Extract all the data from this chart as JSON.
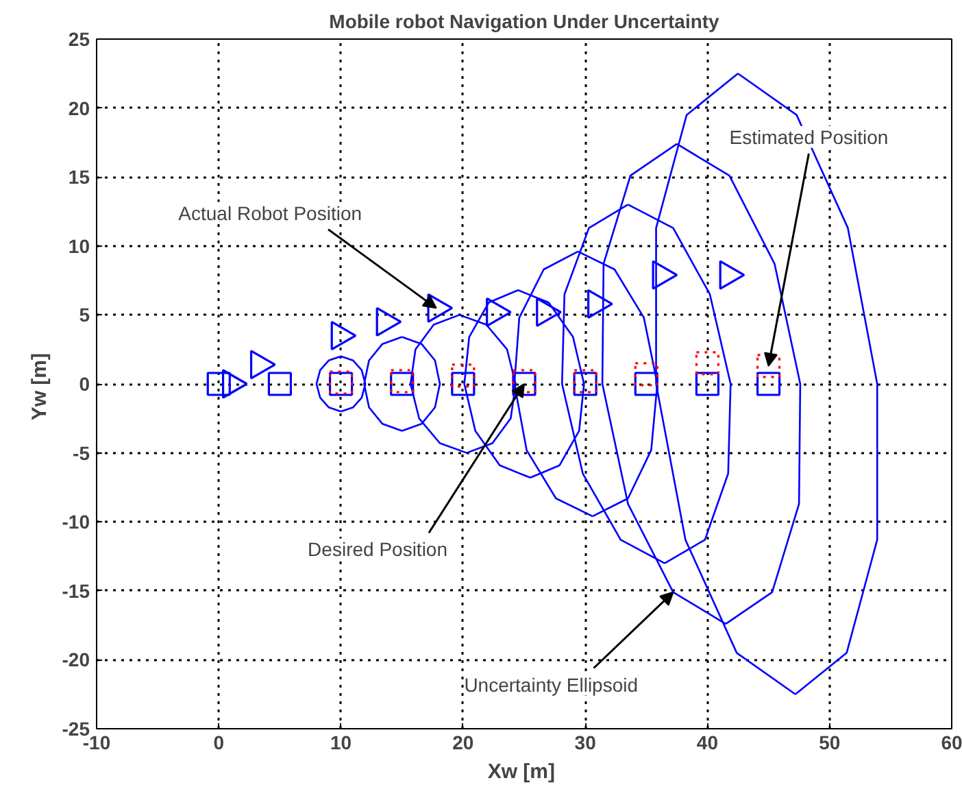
{
  "chart_data": {
    "type": "line",
    "title": "Mobile robot Navigation Under Uncertainty",
    "xlabel": "Xw  [m]",
    "ylabel": "Yw  [m]",
    "xlim": [
      -10,
      60
    ],
    "ylim": [
      -25,
      25
    ],
    "xticks": [
      -10,
      0,
      10,
      20,
      30,
      40,
      50,
      60
    ],
    "yticks": [
      -25,
      -20,
      -15,
      -10,
      -5,
      0,
      5,
      10,
      15,
      20,
      25
    ],
    "grid": true,
    "series": [
      {
        "color": "#0000ff",
        "x": [
          10,
          9,
          8.3,
          8,
          8.3,
          9,
          10
        ],
        "values": [
          2,
          1.7,
          1,
          0,
          -1,
          -1.7,
          -2
        ]
      },
      {
        "color": "#0000ff",
        "x": [
          10,
          11,
          11.7,
          12,
          11.7,
          11,
          10
        ],
        "values": [
          -2,
          -1.7,
          -1,
          0,
          1,
          1.7,
          2
        ]
      },
      {
        "color": "#0000ff",
        "x": [
          15,
          13.4,
          12.3,
          11.9,
          12.3,
          13.4,
          15
        ],
        "values": [
          3.4,
          2.9,
          1.7,
          0,
          -1.7,
          -2.9,
          -3.4
        ]
      },
      {
        "color": "#0000ff",
        "x": [
          15,
          16.6,
          17.7,
          18.1,
          17.7,
          16.6,
          15
        ],
        "values": [
          -3.4,
          -2.9,
          -1.7,
          0,
          1.7,
          2.9,
          3.4
        ]
      },
      {
        "color": "#0000ff",
        "x": [
          19.7,
          17.6,
          16.1,
          15.7,
          16.4,
          18.1,
          20.3
        ],
        "values": [
          5,
          4.3,
          2.5,
          0,
          -2.5,
          -4.3,
          -5
        ]
      },
      {
        "color": "#0000ff",
        "x": [
          20.3,
          22.4,
          23.9,
          24.3,
          23.6,
          21.9,
          19.7
        ],
        "values": [
          -5,
          -4.3,
          -2.5,
          0,
          2.5,
          4.3,
          5
        ]
      },
      {
        "color": "#0000ff",
        "x": [
          24.5,
          22.1,
          20.5,
          20.1,
          21,
          23,
          25.5
        ],
        "values": [
          6.8,
          5.9,
          3.4,
          0,
          -3.4,
          -5.9,
          -6.8
        ]
      },
      {
        "color": "#0000ff",
        "x": [
          25.5,
          27.9,
          29.5,
          29.9,
          29,
          27,
          24.5
        ],
        "values": [
          -6.8,
          -5.9,
          -3.4,
          0,
          3.4,
          5.9,
          6.8
        ]
      },
      {
        "color": "#0000ff",
        "x": [
          29.4,
          26.6,
          24.6,
          24.2,
          25.2,
          27.6,
          30.6
        ],
        "values": [
          9.6,
          8.3,
          4.8,
          0,
          -4.8,
          -8.3,
          -9.6
        ]
      },
      {
        "color": "#0000ff",
        "x": [
          30.6,
          33.5,
          35.4,
          35.9,
          34.8,
          32.4,
          29.4
        ],
        "values": [
          -9.6,
          -8.3,
          -4.8,
          0,
          4.8,
          8.3,
          9.6
        ]
      },
      {
        "color": "#0000ff",
        "x": [
          33.5,
          30.3,
          28.3,
          28.1,
          29.8,
          32.9,
          36.5
        ],
        "values": [
          13,
          11.3,
          6.5,
          0,
          -6.5,
          -11.3,
          -13
        ]
      },
      {
        "color": "#0000ff",
        "x": [
          36.5,
          39.8,
          41.7,
          41.9,
          40.2,
          37.2,
          33.5
        ],
        "values": [
          -13,
          -11.3,
          -6.5,
          0,
          6.5,
          11.3,
          13
        ]
      },
      {
        "color": "#0000ff",
        "x": [
          37.5,
          33.7,
          31.5,
          31.4,
          33.5,
          37.2,
          41.5
        ],
        "values": [
          17.4,
          15.1,
          8.7,
          0,
          -8.7,
          -15.1,
          -17.4
        ]
      },
      {
        "color": "#0000ff",
        "x": [
          41.5,
          45.3,
          47.5,
          47.6,
          45.5,
          41.8,
          37.5
        ],
        "values": [
          -17.4,
          -15.1,
          -8.7,
          0,
          8.7,
          15.1,
          17.4
        ]
      },
      {
        "color": "#0000ff",
        "x": [
          42.5,
          38.3,
          35.8,
          35.8,
          38.2,
          42.4,
          47.2
        ],
        "values": [
          22.5,
          19.5,
          11.3,
          0,
          -11.3,
          -19.5,
          -22.5
        ]
      },
      {
        "color": "#0000ff",
        "x": [
          47.2,
          51.4,
          53.9,
          53.9,
          51.5,
          47.3,
          42.5
        ],
        "values": [
          -22.5,
          -19.5,
          -11.3,
          0,
          11.3,
          19.5,
          22.5
        ]
      },
      {
        "type": "scatter",
        "color": "#0000ff",
        "marker": "square",
        "x": [
          0,
          5,
          10,
          15,
          20,
          25,
          30,
          35,
          40,
          45
        ],
        "values": [
          0,
          0,
          0,
          0,
          0,
          0,
          0,
          0,
          0,
          0
        ]
      },
      {
        "type": "scatter",
        "color": "#ff0000",
        "marker": "square",
        "line_style": "dotted",
        "x": [
          10,
          15,
          20,
          25,
          30,
          35,
          40,
          45
        ],
        "values": [
          0.1,
          0.2,
          0.6,
          0.2,
          0.2,
          0.7,
          1.5,
          1.3
        ]
      },
      {
        "type": "scatter",
        "color": "#0000ff",
        "marker": "triangle",
        "x": [
          1.0,
          3.3,
          9.9,
          13.6,
          17.8,
          22.6,
          26.7,
          30.9,
          36.2,
          41.7
        ],
        "values": [
          0,
          1.4,
          3.5,
          4.5,
          5.5,
          5.2,
          5.2,
          5.8,
          7.9,
          7.9
        ]
      }
    ],
    "annotations": [
      {
        "text": "Actual Robot Position",
        "x": 17.8,
        "y": 5.5
      },
      {
        "text": "Estimated Position",
        "x": 45,
        "y": 1.3
      },
      {
        "text": "Desired Position",
        "x": 25,
        "y": 0
      },
      {
        "text": "Uncertainty Ellipsoid",
        "x": 37.2,
        "y": -15.1
      }
    ]
  }
}
